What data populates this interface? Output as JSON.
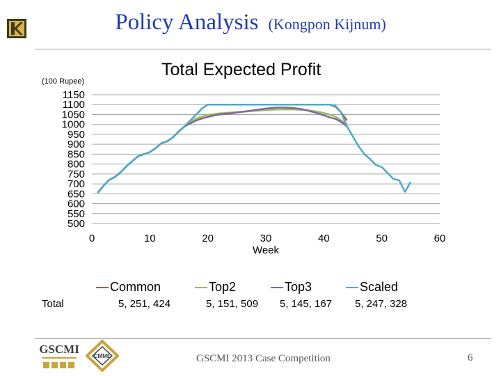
{
  "slide": {
    "title": "Policy Analysis",
    "author": "(Kongpon Kijnum)",
    "footer": "GSCMI 2013 Case Competition",
    "page_number": "6",
    "logos": [
      "GSCMI",
      "CMME"
    ]
  },
  "chart_data": {
    "type": "line",
    "title": "Total Expected Profit",
    "unit_label": "(100 Rupee)",
    "xlabel": "Week",
    "ylabel": "",
    "xlim": [
      0,
      60
    ],
    "ylim": [
      500,
      1150
    ],
    "x_ticks": [
      "0",
      "10",
      "20",
      "30",
      "40",
      "50",
      "60"
    ],
    "y_ticks": [
      "1150",
      "1100",
      "1050",
      "1000",
      "950",
      "900",
      "850",
      "800",
      "750",
      "700",
      "650",
      "600",
      "550",
      "500"
    ],
    "grid": "horizontal",
    "legend_position": "bottom",
    "series": [
      {
        "name": "Common",
        "color": "#c0504d",
        "total": "5, 251, 424",
        "x": [
          1,
          2,
          3,
          4,
          5,
          6,
          7,
          8,
          9,
          10,
          11,
          12,
          13,
          14,
          15,
          16,
          17,
          18,
          19,
          20,
          21,
          22,
          23,
          24,
          25,
          26,
          27,
          28,
          29,
          30,
          31,
          32,
          33,
          34,
          35,
          36,
          37,
          38,
          39,
          40,
          41,
          42,
          43,
          44
        ],
        "y": [
          655,
          690,
          720,
          735,
          760,
          790,
          815,
          840,
          850,
          860,
          880,
          905,
          915,
          935,
          965,
          990,
          1020,
          1050,
          1080,
          1100,
          1100,
          1100,
          1100,
          1100,
          1100,
          1100,
          1100,
          1100,
          1100,
          1100,
          1100,
          1100,
          1100,
          1100,
          1100,
          1100,
          1100,
          1100,
          1100,
          1100,
          1100,
          1090,
          1060,
          1020
        ]
      },
      {
        "name": "Top2",
        "color": "#9bbb59",
        "total": "5, 151, 509",
        "x": [
          1,
          2,
          3,
          4,
          5,
          6,
          7,
          8,
          9,
          10,
          11,
          12,
          13,
          14,
          15,
          16,
          17,
          18,
          19,
          20,
          21,
          22,
          23,
          24,
          25,
          26,
          27,
          28,
          29,
          30,
          31,
          32,
          33,
          34,
          35,
          36,
          37,
          38,
          39,
          40,
          41,
          42,
          43,
          44
        ],
        "y": [
          655,
          690,
          720,
          735,
          760,
          790,
          815,
          840,
          850,
          860,
          880,
          905,
          915,
          935,
          965,
          990,
          1010,
          1030,
          1040,
          1048,
          1052,
          1056,
          1058,
          1060,
          1062,
          1064,
          1066,
          1068,
          1070,
          1072,
          1074,
          1075,
          1076,
          1076,
          1075,
          1074,
          1072,
          1068,
          1064,
          1058,
          1050,
          1040,
          1020,
          1000
        ]
      },
      {
        "name": "Top3",
        "color": "#8064a2",
        "total": "5, 145, 167",
        "x": [
          1,
          2,
          3,
          4,
          5,
          6,
          7,
          8,
          9,
          10,
          11,
          12,
          13,
          14,
          15,
          16,
          17,
          18,
          19,
          20,
          21,
          22,
          23,
          24,
          25,
          26,
          27,
          28,
          29,
          30,
          31,
          32,
          33,
          34,
          35,
          36,
          37,
          38,
          39,
          40,
          41,
          42,
          43,
          44
        ],
        "y": [
          655,
          690,
          720,
          735,
          760,
          790,
          815,
          840,
          850,
          860,
          880,
          905,
          915,
          935,
          965,
          990,
          1005,
          1020,
          1030,
          1038,
          1045,
          1050,
          1053,
          1056,
          1060,
          1064,
          1068,
          1072,
          1076,
          1080,
          1083,
          1085,
          1085,
          1084,
          1082,
          1078,
          1072,
          1064,
          1056,
          1046,
          1036,
          1028,
          1012,
          990
        ]
      },
      {
        "name": "Scaled",
        "color": "#4bacc6",
        "total": "5, 247, 328",
        "x": [
          1,
          2,
          3,
          4,
          5,
          6,
          7,
          8,
          9,
          10,
          11,
          12,
          13,
          14,
          15,
          16,
          17,
          18,
          19,
          20,
          21,
          22,
          23,
          24,
          25,
          26,
          27,
          28,
          29,
          30,
          31,
          32,
          33,
          34,
          35,
          36,
          37,
          38,
          39,
          40,
          41,
          42,
          43,
          44,
          45,
          46,
          47,
          48,
          49,
          50,
          51,
          52,
          53,
          54,
          55
        ],
        "y": [
          655,
          690,
          720,
          735,
          760,
          790,
          815,
          840,
          850,
          860,
          880,
          905,
          915,
          935,
          965,
          990,
          1020,
          1050,
          1080,
          1100,
          1100,
          1100,
          1100,
          1100,
          1100,
          1100,
          1100,
          1100,
          1100,
          1100,
          1100,
          1100,
          1100,
          1100,
          1100,
          1100,
          1100,
          1100,
          1100,
          1100,
          1100,
          1095,
          1060,
          990,
          940,
          890,
          850,
          825,
          795,
          785,
          755,
          725,
          718,
          660,
          710
        ]
      }
    ],
    "totals_row_label": "Total"
  }
}
